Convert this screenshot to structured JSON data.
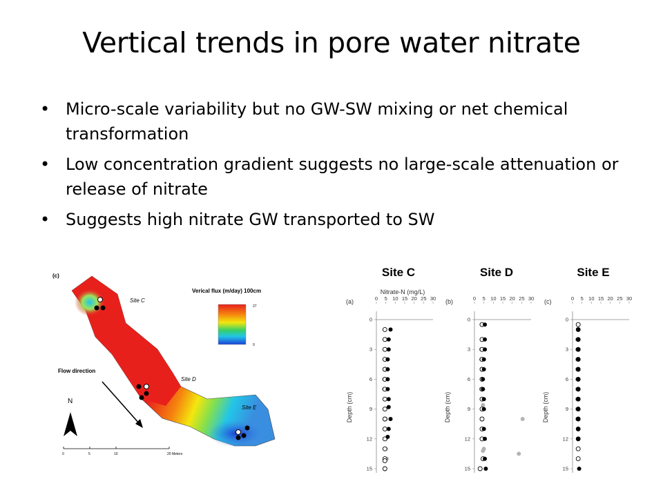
{
  "slide": {
    "title": "Vertical trends in pore water nitrate",
    "bullets": [
      "Micro-scale variability but no GW-SW mixing or net chemical transformation",
      "Low concentration gradient suggests no large-scale attenuation or release of nitrate",
      "Suggests high nitrate GW transported to SW"
    ]
  },
  "map": {
    "panel_label": "(c)",
    "legend_title": "Verical flux (m/day) 100cm",
    "legend_max": "27",
    "legend_min": "0",
    "sites": [
      "Site C",
      "Site D",
      "Site E"
    ],
    "flow_label": "Flow direction",
    "north_label": "N",
    "scale_ticks": [
      "0",
      "5",
      "10",
      "20 Meters"
    ],
    "colors": {
      "high": "#e8201c",
      "mid": "#f4e60e",
      "low": "#2a6fd8"
    }
  },
  "chart_data": [
    {
      "type": "scatter",
      "title": "Site C",
      "panel_label": "(a)",
      "xlabel": "Nitrate-N (mg/L)",
      "ylabel": "Depth (cm)",
      "xlim": [
        0,
        30
      ],
      "ylim": [
        0,
        15
      ],
      "xticks": [
        0,
        5,
        10,
        15,
        20,
        25,
        30
      ],
      "yticks": [
        0,
        3,
        6,
        9,
        12,
        15
      ],
      "series": [
        {
          "marker": "filled",
          "x": [
            7.5,
            6.5,
            6.5,
            6.0,
            6.0,
            6.0,
            6.0,
            6.5,
            6.5,
            7.5,
            6.5,
            6.0
          ],
          "y": [
            1,
            2,
            3,
            4,
            5,
            6,
            7,
            8,
            8.8,
            10,
            11,
            11.8
          ]
        },
        {
          "marker": "open",
          "x": [
            4.5,
            4.5,
            4.5,
            4.5,
            4.5,
            4.5,
            4.5,
            4.5,
            4.5,
            4.5,
            4.5,
            4.5,
            4.5,
            4.5,
            4.5,
            4.5
          ],
          "y": [
            1,
            2,
            3,
            4,
            5,
            6,
            7,
            8,
            9,
            10,
            11,
            12,
            13,
            14,
            14.2,
            15
          ]
        },
        {
          "marker": "gray",
          "x": [
            5.0,
            4.5,
            4.5,
            4.5,
            4.0,
            4.0,
            4.5,
            4.5,
            5.0,
            5.0,
            5.0,
            5.5
          ],
          "y": [
            2,
            3,
            4,
            5,
            6,
            7,
            8,
            9,
            10,
            12,
            13,
            14
          ]
        }
      ]
    },
    {
      "type": "scatter",
      "title": "Site D",
      "panel_label": "(b)",
      "xlim": [
        0,
        30
      ],
      "ylim": [
        0,
        15
      ],
      "xticks": [
        0,
        5,
        10,
        15,
        20,
        25,
        30
      ],
      "yticks": [
        0,
        3,
        6,
        9,
        12,
        15
      ],
      "series": [
        {
          "marker": "filled",
          "x": [
            5.5,
            5.5,
            5.5,
            5.0,
            5.0,
            4.5,
            4.5,
            5.0,
            5.0,
            5.0,
            5.5,
            5.5,
            6.0
          ],
          "y": [
            0.5,
            2,
            3,
            4,
            5,
            6,
            7,
            8,
            9,
            11,
            12,
            14,
            15
          ]
        },
        {
          "marker": "open",
          "x": [
            4.0,
            4.0,
            4.0,
            4.0,
            4.0,
            4.0,
            4.0,
            4.0,
            4.0,
            4.0,
            4.0,
            4.0,
            4.5,
            3.0
          ],
          "y": [
            0.5,
            2,
            3,
            4,
            5,
            6,
            7,
            8,
            9,
            10,
            11,
            12,
            14,
            15
          ]
        },
        {
          "marker": "gray",
          "x": [
            4.5,
            3.5,
            3.5,
            4.0,
            4.0,
            3.5,
            4.5,
            25.5,
            5.0,
            5.0,
            4.5,
            23.5
          ],
          "y": [
            2,
            3,
            4,
            5,
            6,
            7,
            8.6,
            10,
            12,
            13,
            13.2,
            13.5
          ]
        }
      ]
    },
    {
      "type": "scatter",
      "title": "Site E",
      "panel_label": "(c)",
      "xlim": [
        0,
        30
      ],
      "ylim": [
        0,
        15
      ],
      "xticks": [
        0,
        5,
        10,
        15,
        20,
        25,
        30
      ],
      "yticks": [
        0,
        3,
        6,
        9,
        12,
        15
      ],
      "series": [
        {
          "marker": "filled",
          "x": [
            3.0,
            3.0,
            3.0,
            3.0,
            3.0,
            3.0,
            3.0,
            3.0,
            3.0,
            3.0,
            3.0,
            3.0,
            3.5
          ],
          "y": [
            1,
            2,
            3,
            4,
            5,
            6,
            7,
            8,
            9,
            10,
            11,
            12,
            15
          ]
        },
        {
          "marker": "open",
          "x": [
            3.0,
            3.0,
            3.0,
            3.0,
            3.0,
            3.0,
            3.0,
            3.0,
            3.0,
            3.0,
            3.0,
            3.0,
            3.0,
            3.0,
            3.0
          ],
          "y": [
            0.5,
            1,
            2,
            3,
            4,
            5,
            6,
            7,
            8,
            9,
            10,
            11,
            12,
            13,
            14
          ]
        },
        {
          "marker": "gray",
          "x": [
            2.5,
            2.5,
            2.5,
            2.5,
            2.5,
            2.5,
            2.5,
            2.5,
            2.5
          ],
          "y": [
            2,
            3,
            4,
            5,
            6,
            7,
            8,
            9,
            10
          ]
        }
      ]
    }
  ]
}
